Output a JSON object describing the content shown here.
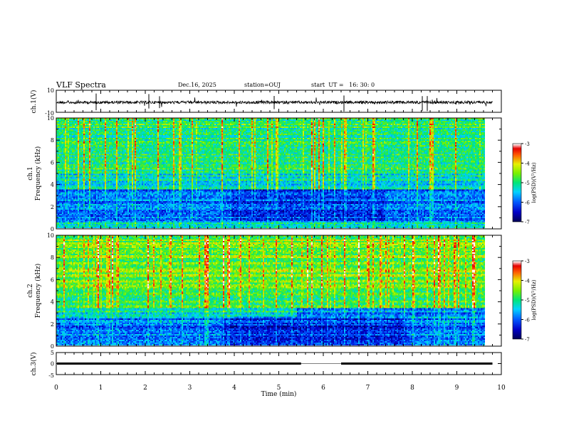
{
  "header": {
    "title": "VLF Spectra",
    "date": "Dec.16, 2025",
    "station": "station=OUJ",
    "start_ut": "start  UT =   16: 30: 0"
  },
  "chart_data": [
    {
      "type": "line",
      "panel": "ch1-waveform",
      "ylabel": "ch.1(V)",
      "ylim": [
        -10,
        10
      ],
      "y_ticks": [
        "10",
        "-10"
      ],
      "xlim": [
        0,
        10
      ],
      "baseline": -1
    },
    {
      "type": "heatmap",
      "panel": "ch1-spectrogram",
      "ylabel_channel": "ch.1",
      "ylabel": "Frequency (kHz)",
      "ylim": [
        0,
        10
      ],
      "y_ticks": [
        "0",
        "2",
        "4",
        "6",
        "8",
        "10"
      ],
      "xlim": [
        0,
        10
      ],
      "data_end_min": 9.8,
      "colorbar": {
        "label": "log(PSD)(V²/Hz)",
        "range": [
          -7,
          -3
        ],
        "ticks": [
          "-3",
          "-4",
          "-5",
          "-6",
          "-7"
        ]
      }
    },
    {
      "type": "heatmap",
      "panel": "ch2-spectrogram",
      "ylabel_channel": "ch.2",
      "ylabel": "Frequency (kHz)",
      "ylim": [
        0,
        10
      ],
      "y_ticks": [
        "0",
        "2",
        "4",
        "6",
        "8",
        "10"
      ],
      "xlim": [
        0,
        10
      ],
      "data_end_min": 9.8,
      "colorbar": {
        "label": "log(PSD)(V²/Hz)",
        "range": [
          -7,
          -3
        ],
        "ticks": [
          "-3",
          "-4",
          "-5",
          "-6",
          "-7"
        ]
      }
    },
    {
      "type": "line",
      "panel": "ch3-waveform",
      "ylabel": "ch.3(V)",
      "ylim": [
        -5,
        5
      ],
      "y_ticks": [
        "5",
        "0",
        "-5"
      ],
      "xlim": [
        0,
        10
      ],
      "baseline": 0,
      "gap_min": [
        5.5,
        6.4
      ]
    }
  ],
  "x_axis": {
    "label": "Time (min)",
    "ticks": [
      "0",
      "1",
      "2",
      "3",
      "4",
      "5",
      "6",
      "7",
      "8",
      "9",
      "10"
    ]
  }
}
